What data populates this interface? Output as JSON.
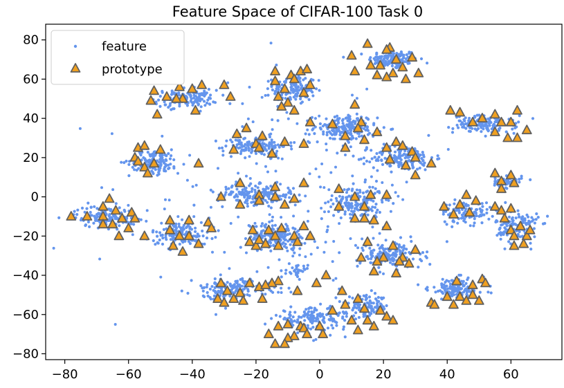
{
  "chart_data": {
    "type": "scatter",
    "title": "Feature Space of CIFAR-100 Task 0",
    "xlabel": "",
    "ylabel": "",
    "xlim": [
      -86,
      76
    ],
    "ylim": [
      -83,
      88
    ],
    "xticks": [
      -80,
      -60,
      -40,
      -20,
      0,
      20,
      40,
      60
    ],
    "yticks": [
      -80,
      -60,
      -40,
      -20,
      0,
      20,
      40,
      60,
      80
    ],
    "xtick_labels": [
      "−80",
      "−60",
      "−40",
      "−20",
      "0",
      "20",
      "40",
      "60"
    ],
    "ytick_labels": [
      "−80",
      "−60",
      "−40",
      "−20",
      "0",
      "20",
      "40",
      "60",
      "80"
    ],
    "grid": false,
    "legend_position": "top-left",
    "feature_color": "#6495ED",
    "prototype_fill": "#F0A020",
    "prototype_edge": "#606060",
    "series": [
      {
        "name": "feature",
        "marker": "dot",
        "clusters": [
          {
            "center": [
              23,
              70
            ],
            "spread": [
              7,
              4.5
            ],
            "count": 140
          },
          {
            "center": [
              -8,
              55
            ],
            "spread": [
              6,
              7
            ],
            "count": 160
          },
          {
            "center": [
              -42,
              50
            ],
            "spread": [
              9,
              4
            ],
            "count": 140
          },
          {
            "center": [
              52,
              37
            ],
            "spread": [
              9,
              4
            ],
            "count": 130
          },
          {
            "center": [
              8,
              35
            ],
            "spread": [
              9,
              6
            ],
            "count": 180
          },
          {
            "center": [
              -20,
              26
            ],
            "spread": [
              9,
              4.5
            ],
            "count": 140
          },
          {
            "center": [
              26,
              20
            ],
            "spread": [
              9,
              6
            ],
            "count": 170
          },
          {
            "center": [
              -52,
              18
            ],
            "spread": [
              7,
              5.5
            ],
            "count": 140
          },
          {
            "center": [
              59,
              8
            ],
            "spread": [
              4,
              3
            ],
            "count": 60
          },
          {
            "center": [
              -20,
              1
            ],
            "spread": [
              11,
              4.5
            ],
            "count": 170
          },
          {
            "center": [
              12,
              -3
            ],
            "spread": [
              7,
              8
            ],
            "count": 160
          },
          {
            "center": [
              46,
              -8
            ],
            "spread": [
              7,
              5
            ],
            "count": 100
          },
          {
            "center": [
              -67,
              -10
            ],
            "spread": [
              9,
              5
            ],
            "count": 150
          },
          {
            "center": [
              62,
              -15
            ],
            "spread": [
              6,
              8
            ],
            "count": 120
          },
          {
            "center": [
              -44,
              -19
            ],
            "spread": [
              8,
              5.5
            ],
            "count": 140
          },
          {
            "center": [
              -13,
              -20
            ],
            "spread": [
              8,
              6
            ],
            "count": 180
          },
          {
            "center": [
              22,
              -30
            ],
            "spread": [
              9,
              6
            ],
            "count": 160
          },
          {
            "center": [
              -7,
              -38
            ],
            "spread": [
              3,
              3
            ],
            "count": 30
          },
          {
            "center": [
              -28,
              -47
            ],
            "spread": [
              11,
              4.5
            ],
            "count": 150
          },
          {
            "center": [
              43,
              -47
            ],
            "spread": [
              8,
              5
            ],
            "count": 140
          },
          {
            "center": [
              -2,
              -62
            ],
            "spread": [
              11,
              5
            ],
            "count": 150
          },
          {
            "center": [
              15,
              -56
            ],
            "spread": [
              6,
              5
            ],
            "count": 110
          }
        ]
      },
      {
        "name": "prototype",
        "marker": "triangle",
        "points": [
          [
            15,
            78
          ],
          [
            22,
            76
          ],
          [
            21,
            75
          ],
          [
            10,
            72
          ],
          [
            24,
            70
          ],
          [
            29,
            71
          ],
          [
            16,
            67
          ],
          [
            19,
            67
          ],
          [
            26,
            66
          ],
          [
            11,
            64
          ],
          [
            23,
            63
          ],
          [
            31,
            63
          ],
          [
            18,
            62
          ],
          [
            21,
            61
          ],
          [
            27,
            60
          ],
          [
            -14,
            64
          ],
          [
            -9,
            62
          ],
          [
            -6,
            64
          ],
          [
            -4,
            65
          ],
          [
            -8,
            60
          ],
          [
            -14,
            59
          ],
          [
            -3,
            57
          ],
          [
            -11,
            55
          ],
          [
            -13,
            51
          ],
          [
            -5,
            53
          ],
          [
            -10,
            48
          ],
          [
            -8,
            44
          ],
          [
            -12,
            46
          ],
          [
            -40,
            55
          ],
          [
            -37,
            57
          ],
          [
            -30,
            57
          ],
          [
            -44,
            56
          ],
          [
            -48,
            51
          ],
          [
            -43,
            50
          ],
          [
            -45,
            50
          ],
          [
            -52,
            54
          ],
          [
            -53,
            49
          ],
          [
            -39,
            44
          ],
          [
            -28,
            51
          ],
          [
            -51,
            42
          ],
          [
            41,
            44
          ],
          [
            44,
            43
          ],
          [
            51,
            40
          ],
          [
            55,
            42
          ],
          [
            62,
            44
          ],
          [
            48,
            38
          ],
          [
            57,
            38
          ],
          [
            60,
            38
          ],
          [
            55,
            33
          ],
          [
            59,
            30
          ],
          [
            62,
            30
          ],
          [
            65,
            34
          ],
          [
            -3,
            38
          ],
          [
            4,
            37
          ],
          [
            11,
            47
          ],
          [
            13,
            38
          ],
          [
            12,
            35
          ],
          [
            8,
            31
          ],
          [
            14,
            29
          ],
          [
            18,
            33
          ],
          [
            8,
            25
          ],
          [
            -26,
            32
          ],
          [
            -23,
            35
          ],
          [
            -18,
            31
          ],
          [
            -11,
            28
          ],
          [
            -20,
            27
          ],
          [
            -27,
            24
          ],
          [
            -19,
            25
          ],
          [
            -5,
            27
          ],
          [
            -15,
            22
          ],
          [
            21,
            25
          ],
          [
            24,
            28
          ],
          [
            26,
            26
          ],
          [
            29,
            23
          ],
          [
            35,
            17
          ],
          [
            22,
            19
          ],
          [
            27,
            16
          ],
          [
            30,
            20
          ],
          [
            30,
            11
          ],
          [
            -57,
            25
          ],
          [
            -55,
            26
          ],
          [
            -50,
            24
          ],
          [
            -58,
            20
          ],
          [
            -57,
            18
          ],
          [
            -55,
            15
          ],
          [
            -52,
            17
          ],
          [
            -54,
            12
          ],
          [
            -38,
            17
          ],
          [
            55,
            12
          ],
          [
            57,
            8
          ],
          [
            60,
            11
          ],
          [
            61,
            7
          ],
          [
            57,
            4
          ],
          [
            -31,
            0
          ],
          [
            -25,
            7
          ],
          [
            -25,
            -4
          ],
          [
            -19,
            1
          ],
          [
            -14,
            0
          ],
          [
            -14,
            5
          ],
          [
            -5,
            7
          ],
          [
            -19,
            -2
          ],
          [
            -11,
            -4
          ],
          [
            -8,
            -1
          ],
          [
            6,
            4
          ],
          [
            6,
            -5
          ],
          [
            11,
            0
          ],
          [
            16,
            1
          ],
          [
            21,
            1
          ],
          [
            14,
            -5
          ],
          [
            11,
            -11
          ],
          [
            14,
            -11
          ],
          [
            17,
            -12
          ],
          [
            21,
            -15
          ],
          [
            39,
            -5
          ],
          [
            44,
            -4
          ],
          [
            42,
            -9
          ],
          [
            46,
            1
          ],
          [
            49,
            -2
          ],
          [
            47,
            -8
          ],
          [
            -78,
            -10
          ],
          [
            -73,
            -10
          ],
          [
            -68,
            -5
          ],
          [
            -66,
            -1
          ],
          [
            -68,
            -10
          ],
          [
            -64,
            -7
          ],
          [
            -68,
            -14
          ],
          [
            -65,
            -14
          ],
          [
            -62,
            -11
          ],
          [
            -59,
            -8
          ],
          [
            -58,
            -11
          ],
          [
            -60,
            -16
          ],
          [
            -63,
            -20
          ],
          [
            55,
            -5
          ],
          [
            57,
            -7
          ],
          [
            60,
            -6
          ],
          [
            58,
            -11
          ],
          [
            60,
            -17
          ],
          [
            63,
            -15
          ],
          [
            65,
            -20
          ],
          [
            66,
            -17
          ],
          [
            61,
            -20
          ],
          [
            61,
            -25
          ],
          [
            64,
            -24
          ],
          [
            -55,
            -20
          ],
          [
            -47,
            -12
          ],
          [
            -41,
            -12
          ],
          [
            -35,
            -13
          ],
          [
            -34,
            -16
          ],
          [
            -47,
            -17
          ],
          [
            -44,
            -20
          ],
          [
            -41,
            -20
          ],
          [
            -38,
            -24
          ],
          [
            -46,
            -25
          ],
          [
            -43,
            -28
          ],
          [
            -21,
            -17
          ],
          [
            -16,
            -17
          ],
          [
            -12,
            -16
          ],
          [
            -5,
            -15
          ],
          [
            -20,
            -25
          ],
          [
            -19,
            -22
          ],
          [
            -14,
            -20
          ],
          [
            -8,
            -20
          ],
          [
            -3,
            -20
          ],
          [
            -22,
            -23
          ],
          [
            -17,
            -24
          ],
          [
            -13,
            -25
          ],
          [
            -7,
            -23
          ],
          [
            15,
            -23
          ],
          [
            23,
            -25
          ],
          [
            30,
            -27
          ],
          [
            26,
            -31
          ],
          [
            20,
            -31
          ],
          [
            13,
            -31
          ],
          [
            18,
            -33
          ],
          [
            25,
            -33
          ],
          [
            28,
            -34
          ],
          [
            24,
            -39
          ],
          [
            17,
            -38
          ],
          [
            -32,
            -52
          ],
          [
            -31,
            -44
          ],
          [
            -29,
            -48
          ],
          [
            -25,
            -49
          ],
          [
            -22,
            -44
          ],
          [
            -19,
            -46
          ],
          [
            -13,
            -43
          ],
          [
            -15,
            -44
          ],
          [
            -17,
            -45
          ],
          [
            -27,
            -52
          ],
          [
            -24,
            -53
          ],
          [
            -30,
            -54
          ],
          [
            -18,
            -52
          ],
          [
            43,
            -43
          ],
          [
            48,
            -45
          ],
          [
            51,
            -42
          ],
          [
            52,
            -44
          ],
          [
            35,
            -54
          ],
          [
            40,
            -51
          ],
          [
            44,
            -51
          ],
          [
            48,
            -50
          ],
          [
            46,
            -53
          ],
          [
            36,
            -55
          ],
          [
            42,
            -55
          ],
          [
            50,
            -53
          ],
          [
            -16,
            -70
          ],
          [
            -13,
            -66
          ],
          [
            -10,
            -65
          ],
          [
            -6,
            -66
          ],
          [
            -5,
            -67
          ],
          [
            1,
            -70
          ],
          [
            0,
            -66
          ],
          [
            -4,
            -70
          ],
          [
            -8,
            -71
          ],
          [
            -10,
            -72
          ],
          [
            -11,
            -75
          ],
          [
            -14,
            -75
          ],
          [
            4,
            -58
          ],
          [
            8,
            -55
          ],
          [
            12,
            -52
          ],
          [
            14,
            -57
          ],
          [
            19,
            -58
          ],
          [
            21,
            -61
          ],
          [
            15,
            -63
          ],
          [
            10,
            -63
          ],
          [
            12,
            -68
          ],
          [
            17,
            -66
          ],
          [
            23,
            -63
          ],
          [
            -7,
            -48
          ],
          [
            -1,
            -44
          ],
          [
            2,
            -40
          ],
          [
            7,
            -48
          ]
        ]
      }
    ]
  }
}
